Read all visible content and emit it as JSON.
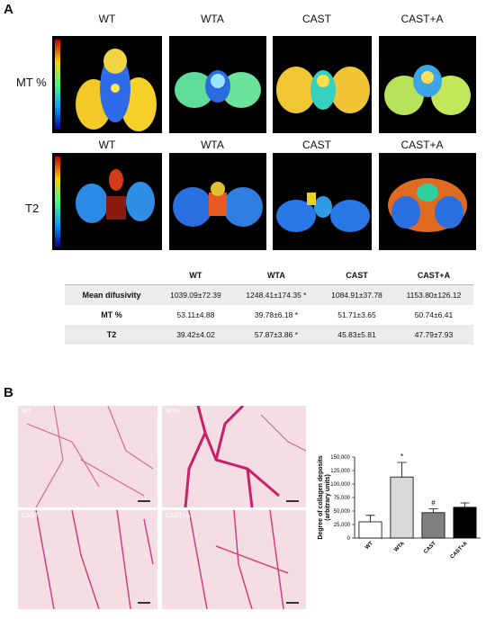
{
  "panel_a": {
    "letter": "A",
    "groups": [
      "WT",
      "WTA",
      "CAST",
      "CAST+A"
    ],
    "row1_label": "MT %",
    "row2_label": "T2",
    "table": {
      "headers": [
        "",
        "WT",
        "WTA",
        "CAST",
        "CAST+A"
      ],
      "rows": [
        {
          "name": "Mean difusivity",
          "values": [
            "1039.09±72.39",
            "1248.41±174.35 *",
            "1084.91±37.78",
            "1153.80±126.12"
          ]
        },
        {
          "name": "MT %",
          "values": [
            "53.11±4.88",
            "39.78±6.18 *",
            "51.71±3.65",
            "50.74±6.41"
          ]
        },
        {
          "name": "T2",
          "values": [
            "39.42±4.02",
            "57.87±3.86 *",
            "45.83±5.81",
            "47.79±7.93"
          ]
        }
      ]
    }
  },
  "panel_b": {
    "letter": "B",
    "histo_labels": [
      "WT",
      "WTA",
      "CAST",
      "CAST+A"
    ],
    "chart_data": {
      "type": "bar",
      "categories": [
        "WT",
        "WTA",
        "CAST",
        "CAST+A"
      ],
      "values": [
        30000,
        113000,
        47000,
        57000
      ],
      "errors": [
        12000,
        27000,
        7000,
        8000
      ],
      "annotations": [
        "",
        "*",
        "#",
        ""
      ],
      "bar_colors": [
        "#ffffff",
        "#d9d9d9",
        "#808080",
        "#000000"
      ],
      "ylabel": "Degree of collagen deposits (arbitrary units)",
      "ylim": [
        0,
        150000
      ],
      "yticks": [
        "0",
        "25,000",
        "50,000",
        "75,000",
        "100,000",
        "125,000",
        "150,000"
      ]
    }
  }
}
